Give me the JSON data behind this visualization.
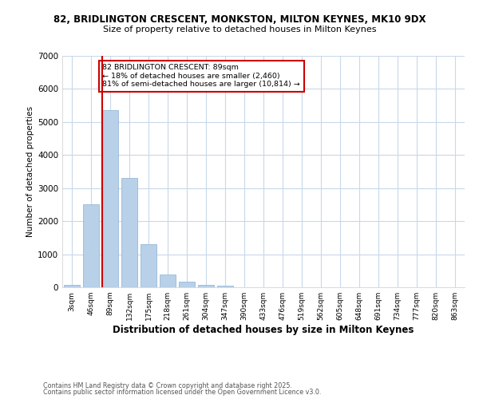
{
  "title1": "82, BRIDLINGTON CRESCENT, MONKSTON, MILTON KEYNES, MK10 9DX",
  "title2": "Size of property relative to detached houses in Milton Keynes",
  "xlabel": "Distribution of detached houses by size in Milton Keynes",
  "ylabel": "Number of detached properties",
  "categories": [
    "3sqm",
    "46sqm",
    "89sqm",
    "132sqm",
    "175sqm",
    "218sqm",
    "261sqm",
    "304sqm",
    "347sqm",
    "390sqm",
    "433sqm",
    "476sqm",
    "519sqm",
    "562sqm",
    "605sqm",
    "648sqm",
    "691sqm",
    "734sqm",
    "777sqm",
    "820sqm",
    "863sqm"
  ],
  "values": [
    75,
    2500,
    5350,
    3300,
    1300,
    375,
    175,
    75,
    50,
    0,
    0,
    0,
    0,
    0,
    0,
    0,
    0,
    0,
    0,
    0,
    0
  ],
  "bar_color": "#b8d0e8",
  "highlight_index": 2,
  "highlight_color": "#cc0000",
  "ylim": [
    0,
    7000
  ],
  "yticks": [
    0,
    1000,
    2000,
    3000,
    4000,
    5000,
    6000,
    7000
  ],
  "bg_color": "#ffffff",
  "grid_color": "#c8d8ea",
  "annotation_text": "82 BRIDLINGTON CRESCENT: 89sqm\n← 18% of detached houses are smaller (2,460)\n81% of semi-detached houses are larger (10,814) →",
  "footer1": "Contains HM Land Registry data © Crown copyright and database right 2025.",
  "footer2": "Contains public sector information licensed under the Open Government Licence v3.0."
}
